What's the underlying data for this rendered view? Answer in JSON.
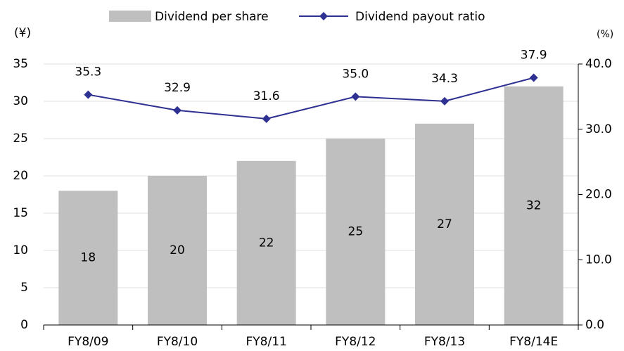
{
  "chart_data": {
    "type": "bar_line",
    "y_label": "(¥)",
    "y2_label": "(%)",
    "categories": [
      "FY8/09",
      "FY8/10",
      "FY8/11",
      "FY8/12",
      "FY8/13",
      "FY8/14E"
    ],
    "series": [
      {
        "name": "Dividend per share",
        "color": "#bfbfbf",
        "type": "bar",
        "values": [
          18,
          20,
          22,
          25,
          27,
          32
        ]
      },
      {
        "name": "Dividend payout ratio",
        "color": "#2e3192",
        "type": "line",
        "axis": "y2",
        "values": [
          35.3,
          32.9,
          31.6,
          35.0,
          34.3,
          37.9
        ],
        "value_labels": [
          "35.3",
          "32.9",
          "31.6",
          "35.0",
          "34.3",
          "37.9"
        ]
      }
    ],
    "ylim": [
      0,
      35
    ],
    "yticks": [
      0,
      5,
      10,
      15,
      20,
      25,
      30,
      35
    ],
    "y2lim": [
      0,
      40
    ],
    "y2ticks": [
      {
        "value": 0,
        "label": "0.0"
      },
      {
        "value": 10,
        "label": "10.0"
      },
      {
        "value": 20,
        "label": "20.0"
      },
      {
        "value": 30,
        "label": "30.0"
      },
      {
        "value": 40,
        "label": "40.0"
      }
    ],
    "grid": true
  }
}
